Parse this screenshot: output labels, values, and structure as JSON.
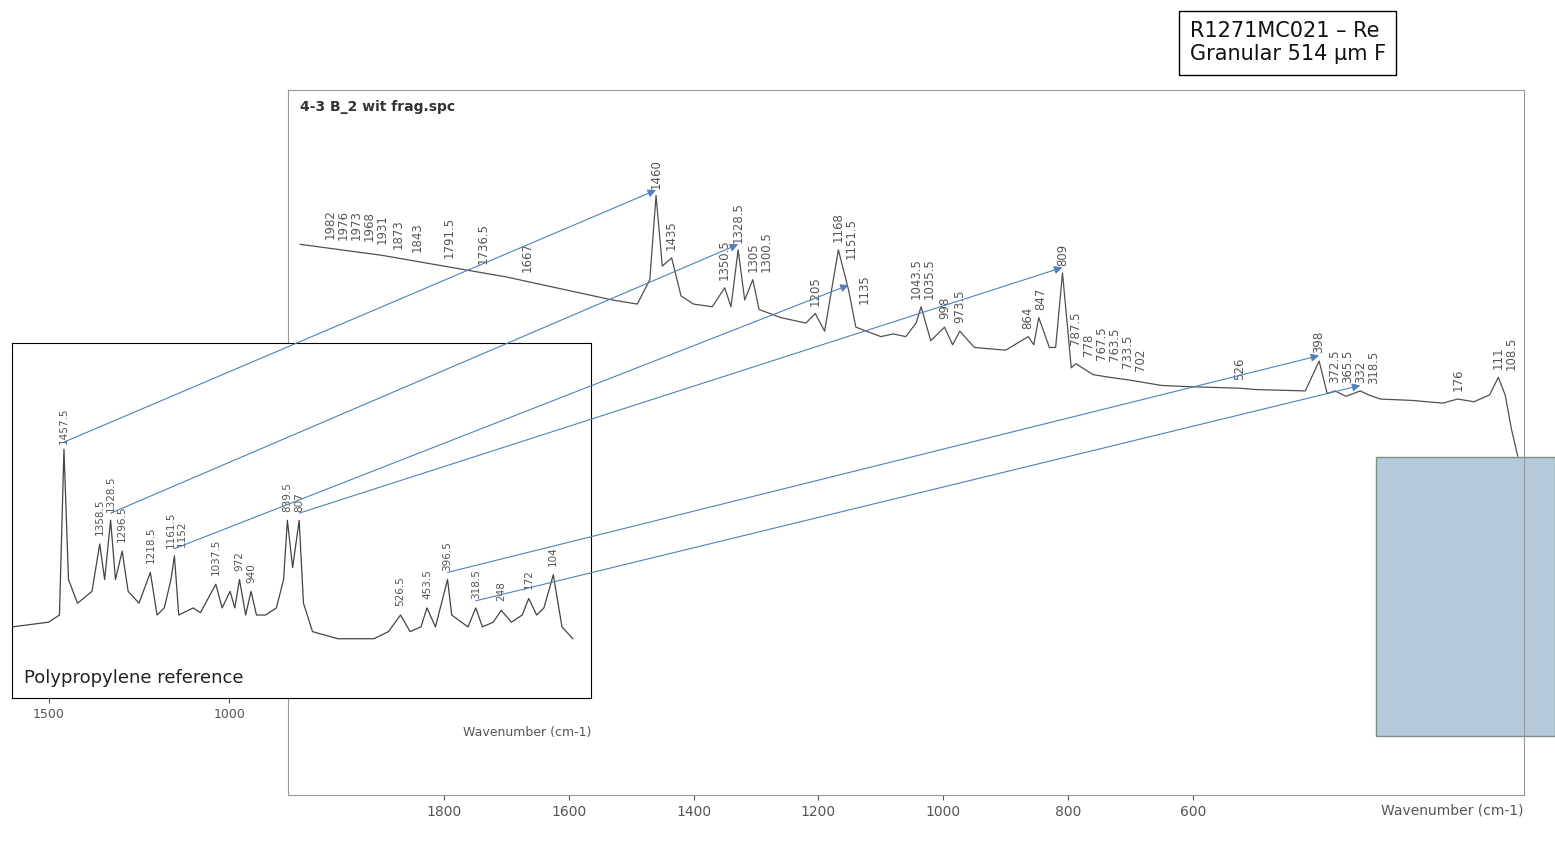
{
  "chart_data": [
    {
      "type": "line",
      "title": "4-3 B_2 wit frag.spc",
      "x_label": "Wavenumber (cm-1)",
      "annotations": [
        "R1271MC021 – Re",
        "Granular 514 µm F"
      ],
      "color": "#505050",
      "line_style": "solid",
      "grid": false,
      "tick_labels": "x",
      "xlim": [
        2050,
        70
      ],
      "ylim": [
        -120,
        140
      ],
      "xticks": [
        1800,
        1600,
        1400,
        1200,
        1000,
        800,
        600
      ],
      "x": [
        2030,
        1900,
        1800,
        1700,
        1600,
        1530,
        1490,
        1470,
        1460,
        1450,
        1435,
        1420,
        1400,
        1370,
        1350,
        1340,
        1328.5,
        1318,
        1305,
        1295,
        1260,
        1220,
        1205,
        1190,
        1168,
        1151.5,
        1140,
        1100,
        1080,
        1060,
        1043.5,
        1035.5,
        1020,
        998,
        985,
        973.5,
        950,
        900,
        864,
        855,
        847,
        830,
        820,
        809,
        795,
        787.5,
        760,
        733.5,
        702,
        650,
        600,
        526,
        500,
        420,
        398,
        385,
        372.5,
        355,
        332,
        318.5,
        300,
        250,
        200,
        176,
        150,
        125,
        111,
        100,
        90,
        80
      ],
      "values": [
        83,
        79,
        75,
        71,
        66,
        62.5,
        61,
        70,
        101,
        75,
        78,
        64,
        61,
        60,
        67,
        60,
        81,
        62.5,
        70,
        59,
        56,
        54,
        57.5,
        51,
        81,
        66,
        52.5,
        49,
        50,
        49,
        54,
        60,
        47.5,
        52.5,
        46,
        51,
        45,
        44,
        49,
        46,
        56,
        45,
        45,
        72.5,
        37.5,
        39,
        35,
        34,
        33,
        31,
        30.5,
        30,
        29.5,
        29,
        40,
        28,
        29,
        27,
        29,
        27.5,
        26,
        25.5,
        24.5,
        26,
        25,
        27.5,
        34,
        27.5,
        15,
        5
      ],
      "peak_labels": [
        1982,
        1976,
        1973,
        1968,
        1931,
        1873,
        1843,
        1791.5,
        1736.5,
        1667,
        1460,
        1435,
        1350.5,
        1328.5,
        1305,
        1300.5,
        1205,
        1168,
        1151.5,
        1135,
        1043.5,
        1035.5,
        998,
        973.5,
        864,
        847,
        809,
        787.5,
        778,
        767.5,
        763.5,
        733.5,
        702,
        526,
        398,
        372.5,
        365.5,
        332,
        318.5,
        176,
        111,
        108.5
      ],
      "reference_matches": [
        {
          "reference": 1457.5,
          "sample": 1460
        },
        {
          "reference": 1328.5,
          "sample": 1328.5
        },
        {
          "reference": 1152,
          "sample": 1151.5
        },
        {
          "reference": 807,
          "sample": 809
        },
        {
          "reference": 396.5,
          "sample": 398
        },
        {
          "reference": 318.5,
          "sample": 332
        }
      ],
      "match_color": "#4f81bd"
    },
    {
      "type": "line",
      "title": "Polypropylene reference",
      "x_label": "Wavenumber (cm-1)",
      "color": "#444444",
      "line_style": "solid",
      "grid": false,
      "tick_labels": "x",
      "xlim": [
        1600,
        0
      ],
      "ylim": [
        -20,
        130
      ],
      "xticks": [
        1500,
        1000
      ],
      "x": [
        1600,
        1500,
        1470,
        1457.5,
        1445,
        1420,
        1380,
        1358.5,
        1345,
        1328.5,
        1315,
        1296.5,
        1280,
        1250,
        1218.5,
        1200,
        1180,
        1161.5,
        1152,
        1140,
        1100,
        1080,
        1037.5,
        1020,
        998,
        985,
        972,
        955,
        940,
        925,
        900,
        870,
        850,
        839.5,
        825,
        807,
        795,
        770,
        700,
        600,
        560,
        526.5,
        500,
        470,
        453.5,
        430,
        396.5,
        385,
        340,
        318.5,
        300,
        270,
        248,
        220,
        190,
        172,
        150,
        130,
        104,
        80,
        50
      ],
      "values": [
        10,
        12,
        15,
        85,
        30,
        20,
        25,
        45,
        30,
        55,
        30,
        42,
        25,
        20,
        33,
        15,
        18,
        30,
        40,
        15,
        18,
        16,
        28,
        18,
        25,
        18,
        30,
        15,
        25,
        15,
        15,
        18,
        30,
        55,
        35,
        55,
        20,
        8,
        5,
        5,
        8,
        15,
        8,
        10,
        18,
        10,
        30,
        15,
        10,
        18,
        10,
        12,
        17,
        12,
        15,
        22,
        15,
        18,
        32,
        10,
        5
      ],
      "peak_labels": [
        1457.5,
        1358.5,
        1328.5,
        1296.5,
        1218.5,
        1161.5,
        1152,
        1037.5,
        972,
        940,
        839.5,
        807,
        526.5,
        453.5,
        396.5,
        318.5,
        248,
        172,
        104
      ]
    }
  ]
}
